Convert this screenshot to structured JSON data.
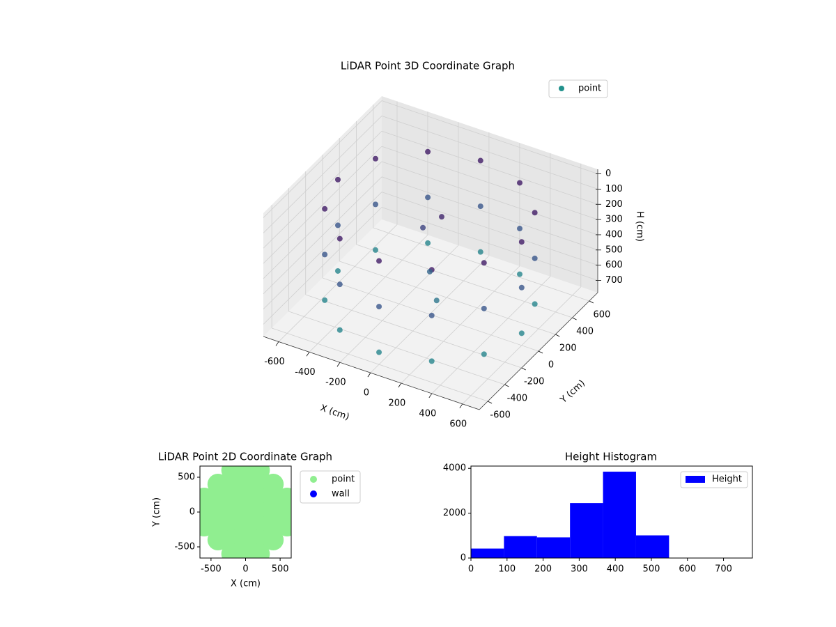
{
  "chart_data": [
    {
      "type": "scatter3d",
      "title": "LiDAR Point 3D Coordinate Graph",
      "xlabel": "X (cm)",
      "ylabel": "Y (cm)",
      "zlabel": "H (cm)",
      "xlim": [
        -700,
        710
      ],
      "ylim": [
        -700,
        700
      ],
      "zlim": [
        -30,
        780
      ],
      "zinverted": true,
      "xticks": [
        -600,
        -400,
        -200,
        0,
        200,
        400,
        600
      ],
      "yticks": [
        -600,
        -400,
        -200,
        0,
        200,
        400,
        600
      ],
      "zticks": [
        0,
        100,
        200,
        300,
        400,
        500,
        600,
        700
      ],
      "grid": true,
      "colormap": "viridis",
      "legend": "upper right",
      "series": [
        {
          "name": "point",
          "color": "#21918c",
          "x": [
            600,
            520,
            300,
            0,
            -300,
            -520,
            -600,
            -520,
            -300,
            0,
            300,
            520,
            600,
            520,
            300,
            0,
            -300,
            -520,
            -600,
            -520,
            -300,
            0,
            300,
            520,
            600,
            520,
            300,
            0,
            -300,
            -520,
            -600,
            -520,
            -300,
            0,
            300,
            520,
            0,
            100,
            -100,
            50
          ],
          "y": [
            0,
            300,
            520,
            600,
            520,
            300,
            0,
            -300,
            -520,
            -600,
            -520,
            -300,
            0,
            300,
            520,
            600,
            520,
            300,
            0,
            -300,
            -520,
            -600,
            -520,
            -300,
            0,
            300,
            520,
            600,
            520,
            300,
            0,
            -300,
            -520,
            -600,
            -520,
            -300,
            0,
            -100,
            100,
            50
          ],
          "z": [
            100,
            100,
            100,
            100,
            100,
            100,
            100,
            100,
            100,
            100,
            100,
            100,
            400,
            400,
            400,
            400,
            400,
            400,
            400,
            400,
            400,
            400,
            400,
            400,
            700,
            700,
            700,
            700,
            700,
            700,
            700,
            700,
            700,
            700,
            700,
            700,
            500,
            600,
            300,
            150
          ]
        }
      ]
    },
    {
      "type": "scatter",
      "title": "LiDAR Point 2D Coordinate Graph",
      "xlabel": "X (cm)",
      "ylabel": "Y (cm)",
      "xlim": [
        -660,
        660
      ],
      "ylim": [
        -660,
        660
      ],
      "xticks": [
        -500,
        0,
        500
      ],
      "yticks": [
        -500,
        0,
        500
      ],
      "legend": "outside right",
      "series": [
        {
          "name": "point",
          "color": "#90ee90",
          "x": [
            -200,
            0,
            200,
            -400,
            -200,
            0,
            200,
            400,
            -600,
            -400,
            -200,
            0,
            200,
            400,
            600,
            -600,
            -400,
            -200,
            0,
            200,
            400,
            600,
            -600,
            -400,
            -200,
            0,
            200,
            400,
            600,
            -400,
            -200,
            0,
            200,
            400,
            -200,
            0,
            200
          ],
          "y": [
            600,
            600,
            600,
            400,
            400,
            400,
            400,
            400,
            200,
            200,
            200,
            200,
            200,
            200,
            200,
            0,
            0,
            0,
            0,
            0,
            0,
            0,
            -200,
            -200,
            -200,
            -200,
            -200,
            -200,
            -200,
            -400,
            -400,
            -400,
            -400,
            -400,
            -600,
            -600,
            -600
          ]
        },
        {
          "name": "wall",
          "color": "#0000ff",
          "x": [],
          "y": []
        }
      ]
    },
    {
      "type": "histogram",
      "title": "Height Histogram",
      "bins": [
        0,
        91.5,
        183,
        274.5,
        366,
        457.5,
        549,
        640.5,
        732
      ],
      "xlim": [
        0,
        780
      ],
      "ylim": [
        0,
        4100
      ],
      "xticks": [
        0,
        100,
        200,
        300,
        400,
        500,
        600,
        700
      ],
      "yticks": [
        0,
        2000,
        4000
      ],
      "legend": "upper right",
      "series": [
        {
          "name": "Height",
          "color": "#0000ff",
          "values": [
            420,
            980,
            920,
            2450,
            3850,
            1010,
            0,
            0
          ]
        }
      ]
    }
  ]
}
